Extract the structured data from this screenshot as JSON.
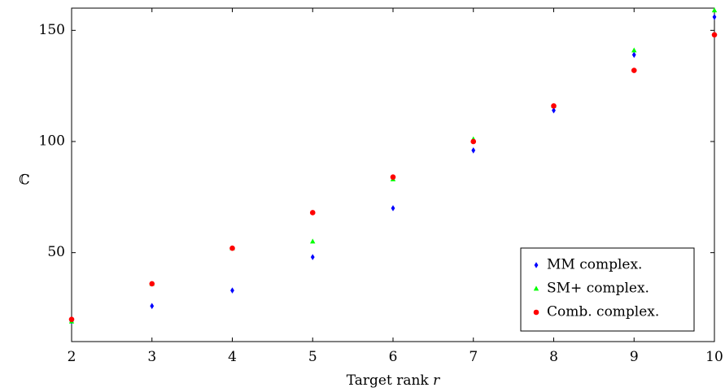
{
  "chart_data": {
    "type": "scatter",
    "title": "",
    "xlabel": "Target rank",
    "xlabel_var": "r",
    "ylabel": "ℂ",
    "xlim": [
      2,
      10
    ],
    "ylim": [
      10,
      160
    ],
    "xticks": [
      2,
      3,
      4,
      5,
      6,
      7,
      8,
      9,
      10
    ],
    "yticks": [
      50,
      100,
      150
    ],
    "grid": false,
    "legend_position": "bottom-right",
    "series": [
      {
        "name": "MM complex.",
        "marker": "diamond",
        "color": "#0000ff",
        "x": [
          2,
          3,
          4,
          5,
          6,
          7,
          8,
          9,
          10
        ],
        "y": [
          19,
          26,
          33,
          48,
          70,
          96,
          114,
          139,
          156
        ]
      },
      {
        "name": "SM+ complex.",
        "marker": "triangle",
        "color": "#00ff00",
        "x": [
          2,
          3,
          4,
          5,
          6,
          7,
          8,
          9,
          10
        ],
        "y": [
          19,
          36,
          52,
          55,
          83,
          101,
          116,
          141,
          159
        ]
      },
      {
        "name": "Comb. complex.",
        "marker": "circle",
        "color": "#ff0000",
        "x": [
          2,
          3,
          4,
          5,
          6,
          7,
          8,
          9,
          10
        ],
        "y": [
          20,
          36,
          52,
          68,
          84,
          100,
          116,
          132,
          148
        ]
      }
    ]
  }
}
